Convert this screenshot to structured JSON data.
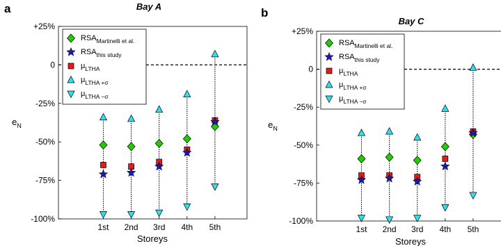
{
  "chart_data": [
    {
      "type": "scatter",
      "panel_label": "a",
      "title": "Bay A",
      "xlabel": "Storeys",
      "ylabel": "e_N",
      "categories": [
        "1st",
        "2nd",
        "3rd",
        "4th",
        "5th"
      ],
      "yticks": [
        "+25%",
        "0",
        "-25%",
        "-50%",
        "-75%",
        "-100%"
      ],
      "ylim": [
        -100,
        25
      ],
      "reference_line": 0,
      "legend_position": "top-left",
      "series": [
        {
          "name": "RSA",
          "sub": "Martinelli et al.",
          "marker": "diamond",
          "color": "#22cc00",
          "values": [
            -52,
            -53,
            -51,
            -48,
            -40
          ]
        },
        {
          "name": "RSA",
          "sub": "this study",
          "marker": "star",
          "color": "#1a1aa8",
          "values": [
            -71,
            -70,
            -66,
            -57,
            -37
          ]
        },
        {
          "name": "μ",
          "sub": "LTHA",
          "marker": "square",
          "color": "#e41a1c",
          "values": [
            -65,
            -66,
            -63,
            -55,
            -36
          ]
        },
        {
          "name": "μ",
          "sub": "LTHA +σ",
          "marker": "triangle-up",
          "color": "#33ddee",
          "values": [
            -34,
            -35,
            -29,
            -19,
            7
          ]
        },
        {
          "name": "μ",
          "sub": "LTHA −σ",
          "marker": "triangle-down",
          "color": "#33ddee",
          "values": [
            -97,
            -97,
            -96,
            -92,
            -79
          ]
        }
      ]
    },
    {
      "type": "scatter",
      "panel_label": "b",
      "title": "Bay C",
      "xlabel": "Storeys",
      "ylabel": "e_N",
      "categories": [
        "1st",
        "2nd",
        "3rd",
        "4th",
        "5th"
      ],
      "yticks": [
        "+25%",
        "0",
        "-25%",
        "-50%",
        "-75%",
        "-100%"
      ],
      "ylim": [
        -100,
        25
      ],
      "reference_line": 0,
      "legend_position": "top-left",
      "series": [
        {
          "name": "RSA",
          "sub": "Martinelli et al.",
          "marker": "diamond",
          "color": "#22cc00",
          "values": [
            -59,
            -58,
            -60,
            -51,
            -43
          ]
        },
        {
          "name": "RSA",
          "sub": "this study",
          "marker": "star",
          "color": "#1a1aa8",
          "values": [
            -73,
            -72,
            -74,
            -64,
            -42
          ]
        },
        {
          "name": "μ",
          "sub": "LTHA",
          "marker": "square",
          "color": "#e41a1c",
          "values": [
            -70,
            -70,
            -71,
            -59,
            -41
          ]
        },
        {
          "name": "μ",
          "sub": "LTHA +σ",
          "marker": "triangle-up",
          "color": "#33ddee",
          "values": [
            -42,
            -41,
            -45,
            -26,
            1
          ]
        },
        {
          "name": "μ",
          "sub": "LTHA −σ",
          "marker": "triangle-down",
          "color": "#33ddee",
          "values": [
            -98,
            -99,
            -98,
            -91,
            -83
          ]
        }
      ]
    }
  ]
}
